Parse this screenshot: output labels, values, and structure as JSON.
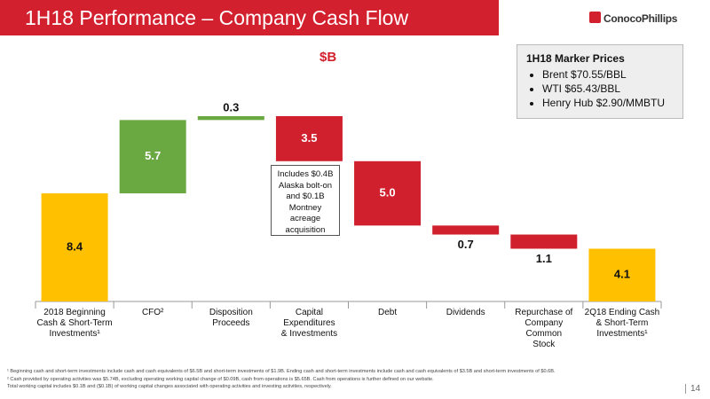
{
  "header": {
    "title": "1H18 Performance – Company Cash Flow",
    "logo": "ConocoPhillips"
  },
  "chart_data": {
    "type": "waterfall",
    "subtitle": "$B",
    "categories": [
      "2018 Beginning\nCash & Short-Term\nInvestments¹",
      "CFO²",
      "Disposition\nProceeds",
      "Capital\nExpenditures\n& Investments",
      "Debt",
      "Dividends",
      "Repurchase of\nCompany Common\nStock",
      "2Q18 Ending Cash\n& Short-Term\nInvestments¹"
    ],
    "values": [
      8.4,
      5.7,
      0.3,
      -3.5,
      -5.0,
      -0.7,
      -1.1,
      4.1
    ],
    "value_labels": [
      "8.4",
      "5.7",
      "0.3",
      "3.5",
      "5.0",
      "0.7",
      "1.1",
      "4.1"
    ],
    "colors": {
      "total": "#ffc000",
      "increase": "#6aa842",
      "decrease": "#d0202e"
    },
    "annotation": "Includes $0.4B Alaska bolt-on and $0.1B Montney acreage acquisition"
  },
  "marker_prices": {
    "title": "1H18 Marker Prices",
    "items": [
      "Brent $70.55/BBL",
      "WTI $65.43/BBL",
      "Henry Hub $2.90/MMBTU"
    ]
  },
  "footnotes": [
    "¹ Beginning cash and short-term investments include cash and cash equivalents of $6.5B and short-term investments of $1.9B. Ending cash and short-term investments include cash and cash equivalents of $3.5B and short-term investments of $0.6B.",
    "² Cash provided by operating activities was $5.74B, excluding operating working capital change of $0.09B, cash from operations is $5.65B. Cash from operations is further defined on our website.",
    "Total working capital includes $0.1B and ($0.1B) of working capital changes associated with operating activities and investing activities, respectively."
  ],
  "page_number": "14"
}
